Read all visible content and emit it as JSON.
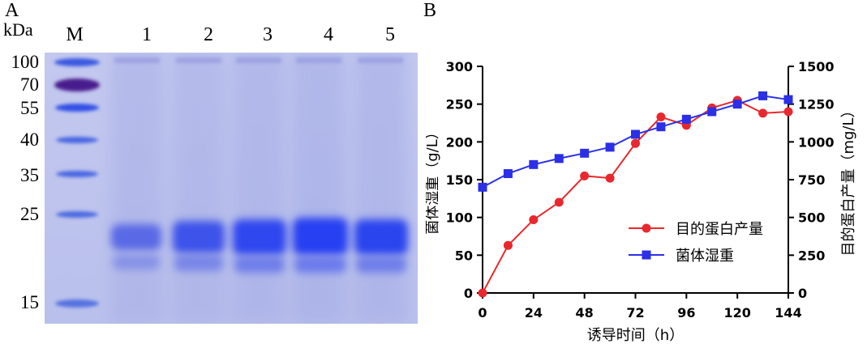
{
  "panel_a": {
    "letter": "A",
    "unit": "kDa",
    "marker_lane": "M",
    "lanes": [
      "1",
      "2",
      "3",
      "4",
      "5"
    ],
    "markers": [
      "100",
      "70",
      "55",
      "40",
      "35",
      "25",
      "15"
    ]
  },
  "panel_b": {
    "letter": "B"
  },
  "chart_data": {
    "type": "line",
    "xlabel": "诱导时间（h）",
    "ylabel_left": "菌体湿重（g/L）",
    "ylabel_right": "目的蛋白产量（mg/L）",
    "xlim": [
      0,
      144
    ],
    "xticks": [
      "0",
      "24",
      "48",
      "72",
      "96",
      "120",
      "144"
    ],
    "ylim_left": [
      0,
      300
    ],
    "yticks_left": [
      "0",
      "50",
      "100",
      "150",
      "200",
      "250",
      "300"
    ],
    "ylim_right": [
      0,
      1500
    ],
    "yticks_right": [
      "0",
      "250",
      "500",
      "750",
      "1000",
      "1250",
      "1500"
    ],
    "legend_position": "lower-right",
    "series": [
      {
        "name": "目的蛋白产量",
        "axis": "right",
        "color": "#e8282e",
        "marker": "circle",
        "x": [
          0,
          12,
          24,
          36,
          48,
          60,
          72,
          84,
          96,
          108,
          120,
          132,
          144
        ],
        "y": [
          0,
          315,
          485,
          600,
          775,
          760,
          990,
          1165,
          1110,
          1225,
          1275,
          1190,
          1200
        ]
      },
      {
        "name": "菌体湿重",
        "axis": "left",
        "color": "#2b2fe6",
        "marker": "square",
        "x": [
          0,
          12,
          24,
          36,
          48,
          60,
          72,
          84,
          96,
          108,
          120,
          132,
          144
        ],
        "y": [
          140,
          158,
          170,
          178,
          185,
          193,
          210,
          220,
          230,
          240,
          250,
          261,
          256
        ]
      }
    ]
  }
}
